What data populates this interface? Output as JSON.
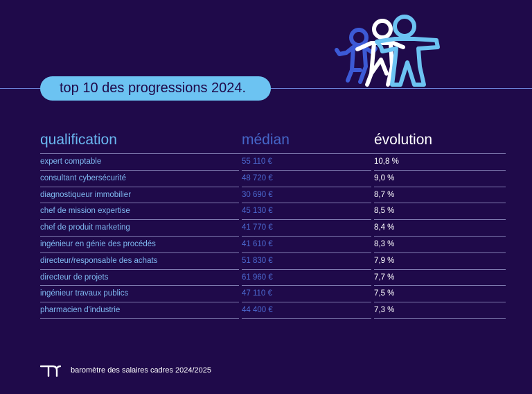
{
  "title": "top 10 des progressions 2024.",
  "table": {
    "headers": {
      "qualification": "qualification",
      "median": "médian",
      "evolution": "évolution"
    },
    "rows": [
      {
        "qualification": "expert comptable",
        "median": "55 110 €",
        "evolution": "10,8 %"
      },
      {
        "qualification": "consultant cybersécurité",
        "median": "48 720 €",
        "evolution": "9,0 %"
      },
      {
        "qualification": "diagnostiqueur immobilier",
        "median": "30 690 €",
        "evolution": "8,7 %"
      },
      {
        "qualification": "chef de mission expertise",
        "median": "45 130 €",
        "evolution": "8,5 %"
      },
      {
        "qualification": "chef de produit marketing",
        "median": "41 770 €",
        "evolution": "8,4 %"
      },
      {
        "qualification": "ingénieur en génie des procédés",
        "median": "41 610 €",
        "evolution": "8,3 %"
      },
      {
        "qualification": "directeur/responsable des achats",
        "median": "51 830 €",
        "evolution": "7,9 %"
      },
      {
        "qualification": "directeur de projets",
        "median": "61 960 €",
        "evolution": "7,7 %"
      },
      {
        "qualification": "ingénieur travaux publics",
        "median": "47 110 €",
        "evolution": "7,5 %"
      },
      {
        "qualification": "pharmacien d'industrie",
        "median": "44 400 €",
        "evolution": "7,3 %"
      }
    ]
  },
  "footer": {
    "text": "baromètre des salaires cadres 2024/2025"
  },
  "icons": {
    "illustration": "three-people-figures-icon",
    "logo": "brand-logo-icon"
  },
  "colors": {
    "background": "#1f0a4a",
    "accent": "#6cc3f2",
    "median": "#4c6ad0"
  }
}
